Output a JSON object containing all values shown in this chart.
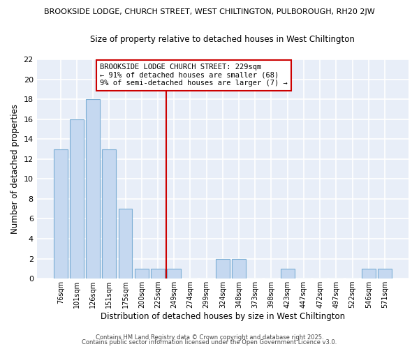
{
  "title_top": "BROOKSIDE LODGE, CHURCH STREET, WEST CHILTINGTON, PULBOROUGH, RH20 2JW",
  "title_sub": "Size of property relative to detached houses in West Chiltington",
  "xlabel": "Distribution of detached houses by size in West Chiltington",
  "ylabel": "Number of detached properties",
  "bar_labels": [
    "76sqm",
    "101sqm",
    "126sqm",
    "151sqm",
    "175sqm",
    "200sqm",
    "225sqm",
    "249sqm",
    "274sqm",
    "299sqm",
    "324sqm",
    "348sqm",
    "373sqm",
    "398sqm",
    "423sqm",
    "447sqm",
    "472sqm",
    "497sqm",
    "522sqm",
    "546sqm",
    "571sqm"
  ],
  "bar_values": [
    13,
    16,
    18,
    13,
    7,
    1,
    1,
    1,
    0,
    0,
    2,
    2,
    0,
    0,
    1,
    0,
    0,
    0,
    0,
    1,
    1
  ],
  "bar_color": "#c5d8f0",
  "bar_edge_color": "#7aadd4",
  "vline_color": "#cc0000",
  "annotation_title": "BROOKSIDE LODGE CHURCH STREET: 229sqm",
  "annotation_line1": "← 91% of detached houses are smaller (68)",
  "annotation_line2": "9% of semi-detached houses are larger (7) →",
  "ylim": [
    0,
    22
  ],
  "yticks": [
    0,
    2,
    4,
    6,
    8,
    10,
    12,
    14,
    16,
    18,
    20,
    22
  ],
  "footer1": "Contains HM Land Registry data © Crown copyright and database right 2025.",
  "footer2": "Contains public sector information licensed under the Open Government Licence v3.0.",
  "plot_bg_color": "#e8eef8",
  "fig_bg_color": "#ffffff",
  "grid_color": "#ffffff"
}
